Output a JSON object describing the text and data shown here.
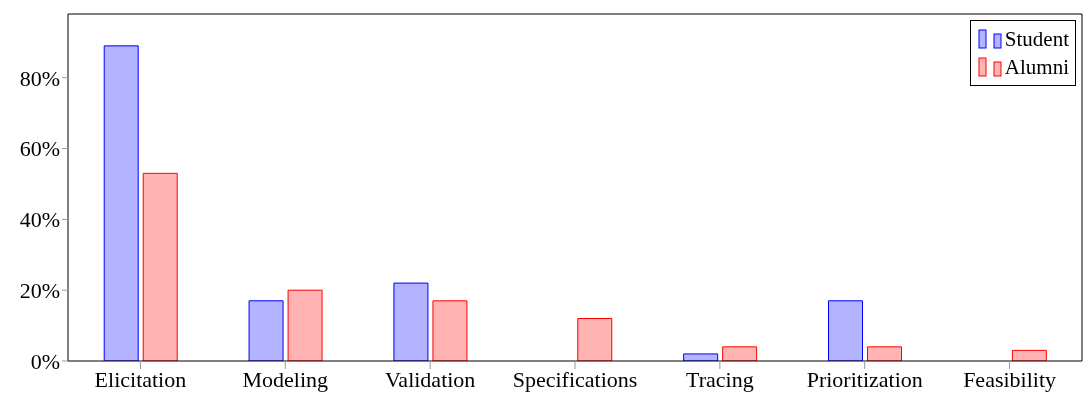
{
  "chart_data": {
    "type": "bar",
    "categories": [
      "Elicitation",
      "Modeling",
      "Validation",
      "Specifications",
      "Tracing",
      "Prioritization",
      "Feasibility"
    ],
    "series": [
      {
        "name": "Student",
        "color": "#b3b3ff",
        "values": [
          89,
          17,
          22,
          0,
          2,
          17,
          0
        ]
      },
      {
        "name": "Alumni",
        "color": "#ffb3b3",
        "values": [
          53,
          20,
          17,
          12,
          4,
          4,
          3
        ]
      }
    ],
    "ylim": [
      0,
      98
    ],
    "yticks": [
      {
        "value": 0,
        "label": "0%"
      },
      {
        "value": 20,
        "label": "20%"
      },
      {
        "value": 40,
        "label": "40%"
      },
      {
        "value": 60,
        "label": "60%"
      },
      {
        "value": 80,
        "label": "80%"
      }
    ],
    "grid": false,
    "legend": "top right"
  }
}
